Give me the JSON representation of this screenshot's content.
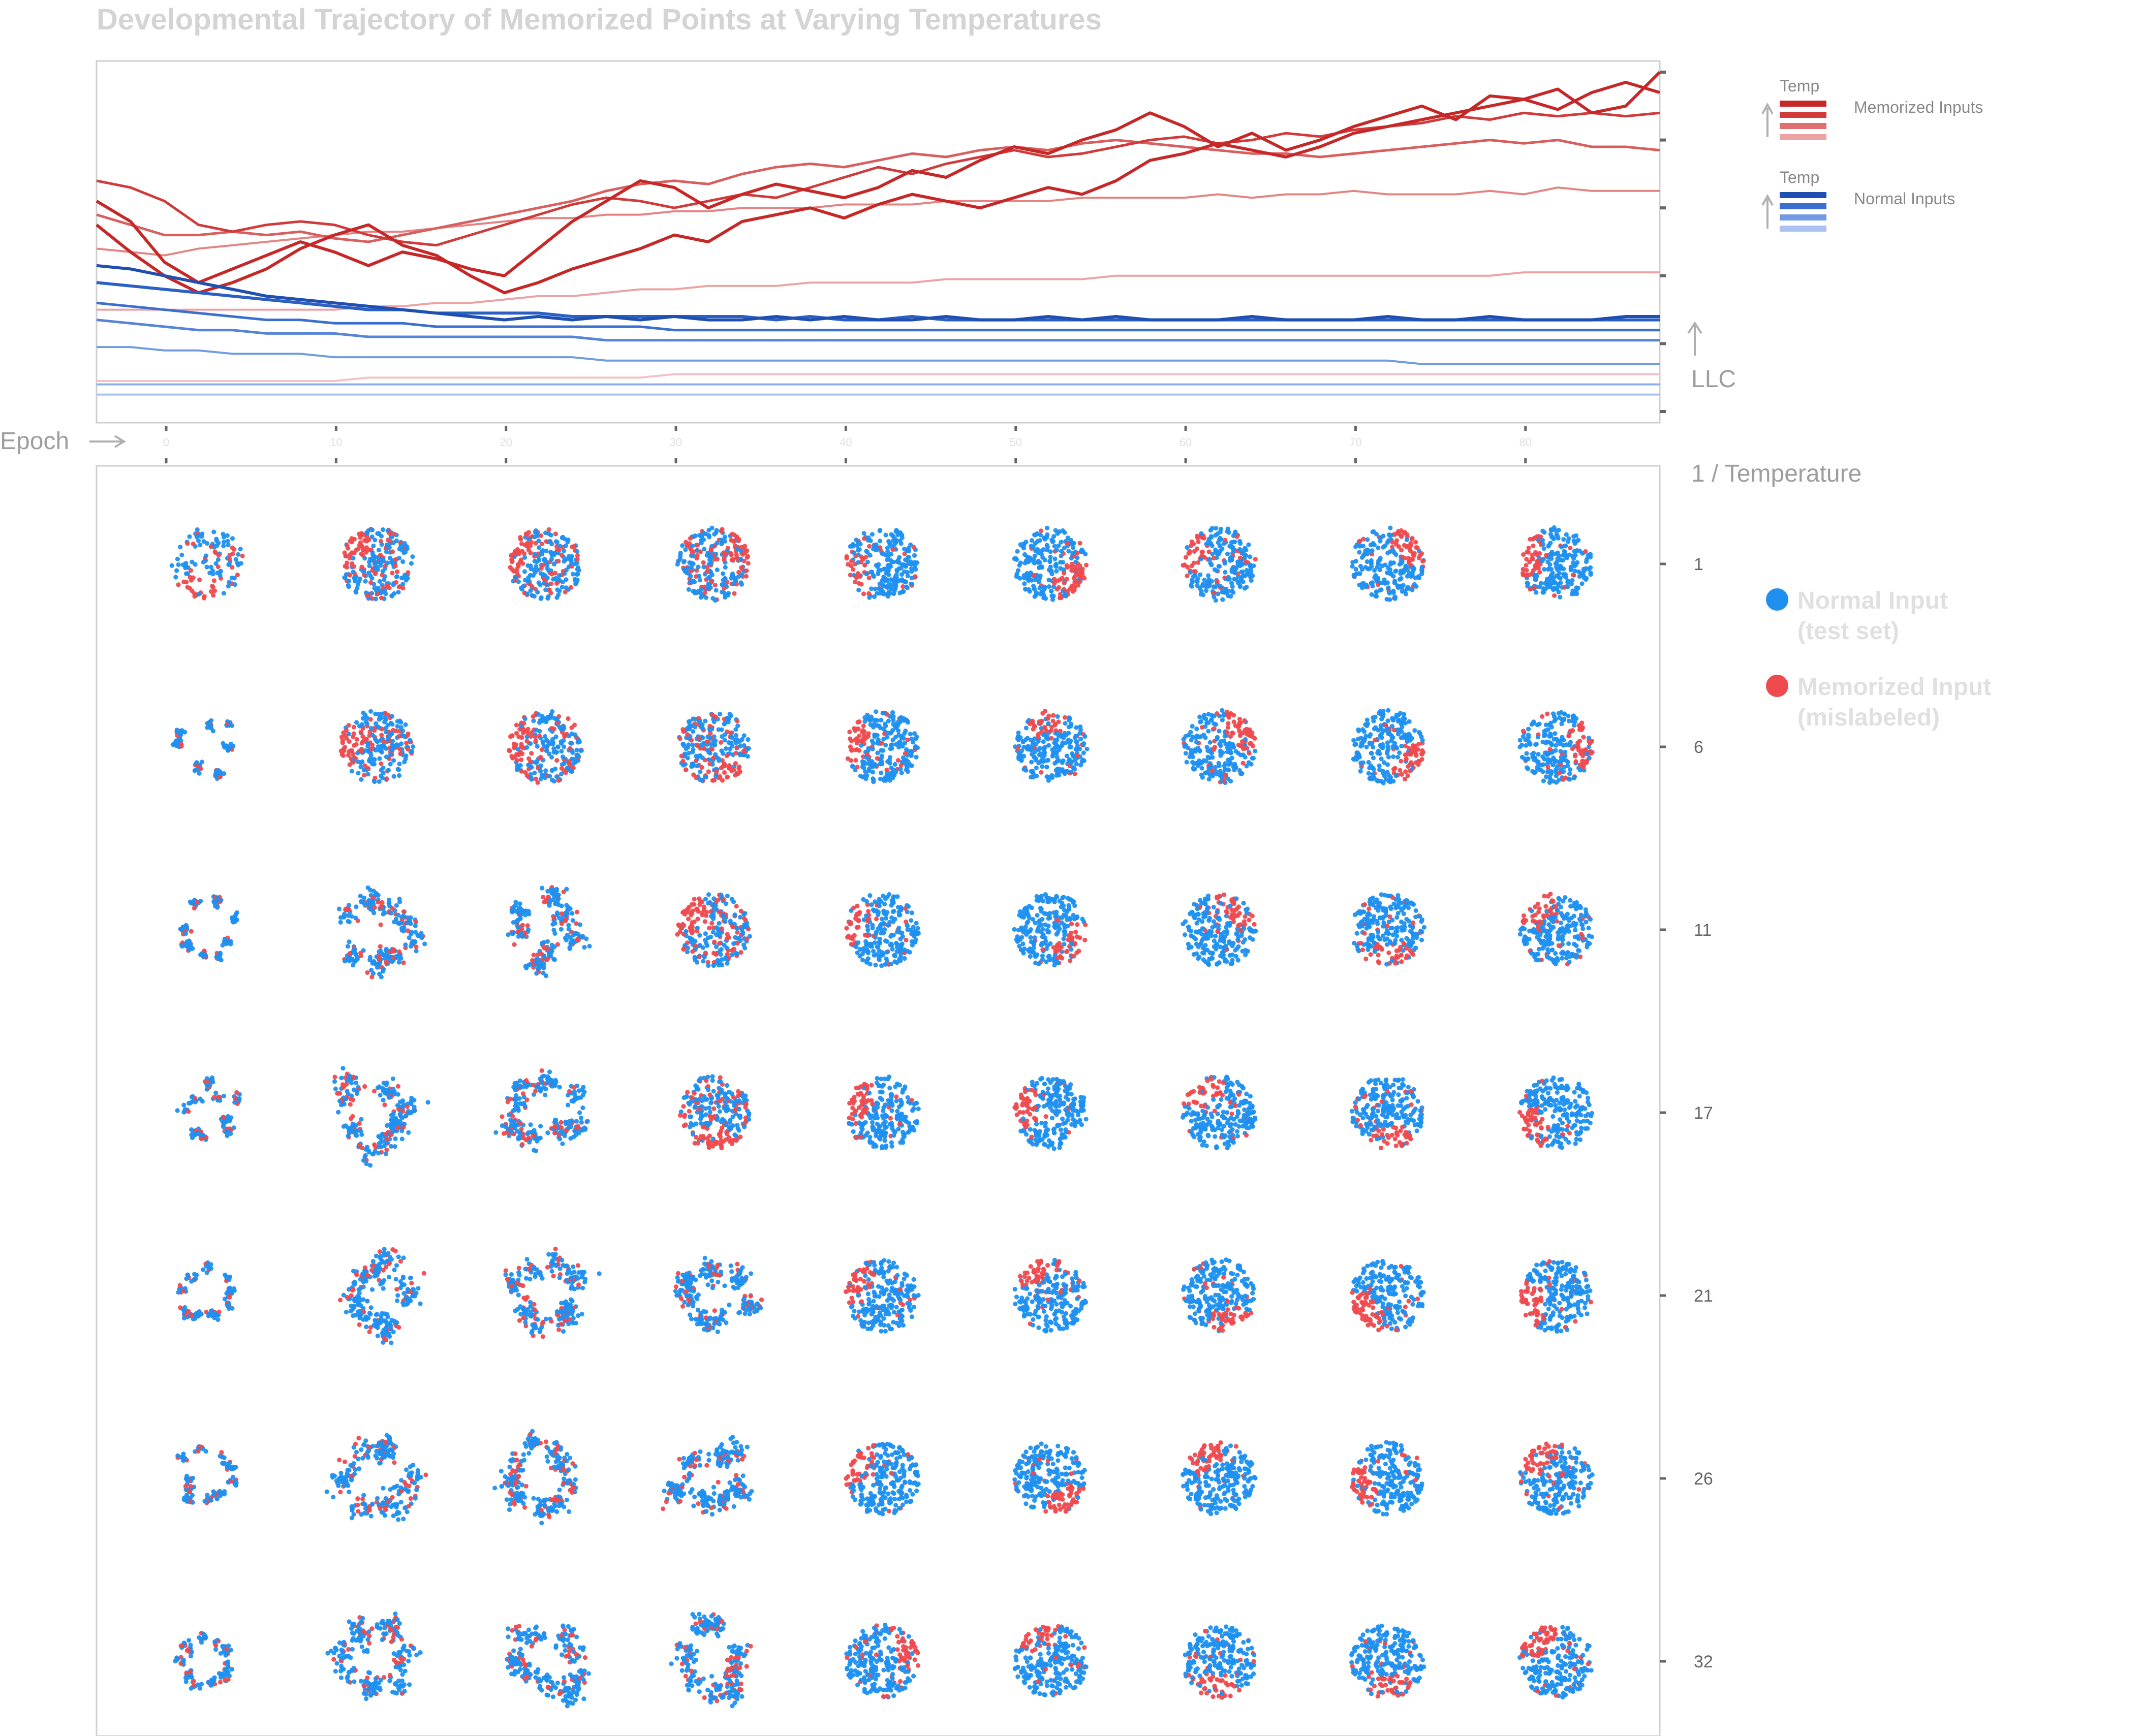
{
  "title": "Developmental Trajectory of Memorized Points at Varying Temperatures",
  "colors": {
    "title": "#d4d4d4",
    "axis_label": "#9e9e9e",
    "tick": "#666666",
    "frame": "#cfcfcf",
    "normal_point": "#1e90f0",
    "memorized_point": "#ef4a4e",
    "legend_text": "#e0e0e0"
  },
  "chart_data": [
    {
      "type": "line",
      "x": [
        0,
        2,
        4,
        6,
        8,
        10,
        12,
        14,
        16,
        18,
        20,
        22,
        24,
        26,
        28,
        30,
        32,
        34,
        36,
        38,
        40,
        42,
        44,
        46,
        48,
        50,
        52,
        54,
        56,
        58,
        60,
        62,
        64,
        66,
        68,
        70,
        72,
        74,
        76,
        78,
        80,
        82,
        84,
        86,
        88,
        90,
        92
      ],
      "x_ticks": [
        "0",
        "10",
        "20",
        "30",
        "40",
        "50",
        "60",
        "70",
        "80"
      ],
      "xlabel": "Epoch",
      "ylabel": "LLC",
      "xlim": [
        0,
        92
      ],
      "ylim": [
        0,
        1
      ],
      "grid": false,
      "series": [
        {
          "group": "memorized",
          "temp_rank": 1,
          "color": "#c62828",
          "values": [
            0.62,
            0.56,
            0.44,
            0.38,
            0.42,
            0.46,
            0.5,
            0.47,
            0.43,
            0.47,
            0.45,
            0.42,
            0.4,
            0.48,
            0.56,
            0.62,
            0.68,
            0.66,
            0.6,
            0.64,
            0.67,
            0.65,
            0.63,
            0.66,
            0.71,
            0.69,
            0.74,
            0.78,
            0.76,
            0.8,
            0.83,
            0.88,
            0.84,
            0.78,
            0.82,
            0.77,
            0.8,
            0.84,
            0.87,
            0.9,
            0.86,
            0.93,
            0.92,
            0.89,
            0.94,
            0.97,
            0.94
          ]
        },
        {
          "group": "memorized",
          "temp_rank": 2,
          "color": "#c62828",
          "values": [
            0.55,
            0.47,
            0.4,
            0.35,
            0.38,
            0.42,
            0.48,
            0.52,
            0.55,
            0.49,
            0.46,
            0.4,
            0.35,
            0.38,
            0.42,
            0.45,
            0.48,
            0.52,
            0.5,
            0.56,
            0.58,
            0.6,
            0.57,
            0.61,
            0.64,
            0.62,
            0.6,
            0.63,
            0.66,
            0.64,
            0.68,
            0.74,
            0.76,
            0.79,
            0.77,
            0.75,
            0.78,
            0.82,
            0.84,
            0.86,
            0.88,
            0.9,
            0.92,
            0.95,
            0.88,
            0.9,
            1.0
          ]
        },
        {
          "group": "memorized",
          "temp_rank": 3,
          "color": "#d13a3a",
          "values": [
            0.68,
            0.66,
            0.62,
            0.55,
            0.53,
            0.55,
            0.56,
            0.55,
            0.52,
            0.5,
            0.49,
            0.52,
            0.55,
            0.58,
            0.61,
            0.63,
            0.62,
            0.6,
            0.62,
            0.64,
            0.63,
            0.66,
            0.69,
            0.72,
            0.7,
            0.73,
            0.75,
            0.77,
            0.75,
            0.76,
            0.78,
            0.8,
            0.81,
            0.79,
            0.8,
            0.82,
            0.81,
            0.83,
            0.84,
            0.85,
            0.87,
            0.86,
            0.88,
            0.87,
            0.88,
            0.87,
            0.88
          ]
        },
        {
          "group": "memorized",
          "temp_rank": 4,
          "color": "#db5e5e",
          "values": [
            0.58,
            0.55,
            0.52,
            0.52,
            0.53,
            0.52,
            0.53,
            0.51,
            0.5,
            0.52,
            0.54,
            0.56,
            0.58,
            0.6,
            0.62,
            0.65,
            0.67,
            0.68,
            0.67,
            0.7,
            0.72,
            0.73,
            0.72,
            0.74,
            0.76,
            0.75,
            0.77,
            0.78,
            0.77,
            0.79,
            0.8,
            0.79,
            0.78,
            0.77,
            0.76,
            0.76,
            0.75,
            0.76,
            0.77,
            0.78,
            0.79,
            0.8,
            0.79,
            0.8,
            0.78,
            0.78,
            0.77
          ]
        },
        {
          "group": "memorized",
          "temp_rank": 5,
          "color": "#e58383",
          "values": [
            0.48,
            0.47,
            0.46,
            0.48,
            0.49,
            0.5,
            0.51,
            0.52,
            0.53,
            0.53,
            0.54,
            0.55,
            0.56,
            0.57,
            0.57,
            0.58,
            0.58,
            0.59,
            0.59,
            0.6,
            0.6,
            0.6,
            0.61,
            0.61,
            0.61,
            0.62,
            0.62,
            0.62,
            0.62,
            0.63,
            0.63,
            0.63,
            0.63,
            0.64,
            0.63,
            0.64,
            0.64,
            0.65,
            0.64,
            0.64,
            0.64,
            0.65,
            0.64,
            0.66,
            0.65,
            0.65,
            0.65
          ]
        },
        {
          "group": "memorized",
          "temp_rank": 6,
          "color": "#eda3a3",
          "values": [
            0.3,
            0.3,
            0.3,
            0.3,
            0.3,
            0.3,
            0.3,
            0.3,
            0.31,
            0.31,
            0.32,
            0.32,
            0.33,
            0.34,
            0.34,
            0.35,
            0.36,
            0.36,
            0.37,
            0.37,
            0.37,
            0.38,
            0.38,
            0.38,
            0.38,
            0.39,
            0.39,
            0.39,
            0.39,
            0.39,
            0.4,
            0.4,
            0.4,
            0.4,
            0.4,
            0.4,
            0.4,
            0.4,
            0.4,
            0.4,
            0.4,
            0.4,
            0.41,
            0.41,
            0.41,
            0.41,
            0.41
          ]
        },
        {
          "group": "memorized",
          "temp_rank": 7,
          "color": "#f3c2c2",
          "values": [
            0.09,
            0.09,
            0.09,
            0.09,
            0.09,
            0.09,
            0.09,
            0.09,
            0.1,
            0.1,
            0.1,
            0.1,
            0.1,
            0.1,
            0.1,
            0.1,
            0.1,
            0.11,
            0.11,
            0.11,
            0.11,
            0.11,
            0.11,
            0.11,
            0.11,
            0.11,
            0.11,
            0.11,
            0.11,
            0.11,
            0.11,
            0.11,
            0.11,
            0.11,
            0.11,
            0.11,
            0.11,
            0.11,
            0.11,
            0.11,
            0.11,
            0.11,
            0.11,
            0.11,
            0.11,
            0.11,
            0.11
          ]
        },
        {
          "group": "normal",
          "temp_rank": 1,
          "color": "#1f4fb0",
          "values": [
            0.43,
            0.42,
            0.4,
            0.38,
            0.36,
            0.34,
            0.33,
            0.32,
            0.31,
            0.3,
            0.29,
            0.28,
            0.27,
            0.28,
            0.27,
            0.28,
            0.27,
            0.28,
            0.27,
            0.27,
            0.28,
            0.27,
            0.28,
            0.27,
            0.27,
            0.28,
            0.27,
            0.27,
            0.28,
            0.27,
            0.28,
            0.27,
            0.27,
            0.27,
            0.28,
            0.27,
            0.27,
            0.27,
            0.28,
            0.27,
            0.27,
            0.28,
            0.27,
            0.27,
            0.27,
            0.28,
            0.28
          ]
        },
        {
          "group": "normal",
          "temp_rank": 2,
          "color": "#2a5fc4",
          "values": [
            0.38,
            0.37,
            0.36,
            0.35,
            0.34,
            0.33,
            0.32,
            0.31,
            0.3,
            0.3,
            0.29,
            0.29,
            0.29,
            0.29,
            0.28,
            0.28,
            0.28,
            0.28,
            0.28,
            0.28,
            0.27,
            0.28,
            0.27,
            0.27,
            0.28,
            0.27,
            0.27,
            0.27,
            0.27,
            0.27,
            0.27,
            0.27,
            0.27,
            0.27,
            0.27,
            0.27,
            0.27,
            0.27,
            0.27,
            0.27,
            0.27,
            0.27,
            0.27,
            0.27,
            0.27,
            0.27,
            0.27
          ]
        },
        {
          "group": "normal",
          "temp_rank": 3,
          "color": "#3a6fd0",
          "values": [
            0.32,
            0.31,
            0.3,
            0.29,
            0.28,
            0.27,
            0.27,
            0.26,
            0.26,
            0.26,
            0.25,
            0.25,
            0.25,
            0.25,
            0.25,
            0.25,
            0.25,
            0.24,
            0.24,
            0.24,
            0.24,
            0.24,
            0.24,
            0.24,
            0.24,
            0.24,
            0.24,
            0.24,
            0.24,
            0.24,
            0.24,
            0.24,
            0.24,
            0.24,
            0.24,
            0.24,
            0.24,
            0.24,
            0.24,
            0.24,
            0.24,
            0.24,
            0.24,
            0.24,
            0.24,
            0.24,
            0.24
          ]
        },
        {
          "group": "normal",
          "temp_rank": 4,
          "color": "#5584da",
          "values": [
            0.27,
            0.26,
            0.25,
            0.24,
            0.24,
            0.23,
            0.23,
            0.23,
            0.22,
            0.22,
            0.22,
            0.22,
            0.22,
            0.22,
            0.22,
            0.21,
            0.21,
            0.21,
            0.21,
            0.21,
            0.21,
            0.21,
            0.21,
            0.21,
            0.21,
            0.21,
            0.21,
            0.21,
            0.21,
            0.21,
            0.21,
            0.21,
            0.21,
            0.21,
            0.21,
            0.21,
            0.21,
            0.21,
            0.21,
            0.21,
            0.21,
            0.21,
            0.21,
            0.21,
            0.21,
            0.21,
            0.21
          ]
        },
        {
          "group": "normal",
          "temp_rank": 5,
          "color": "#709ae2",
          "values": [
            0.19,
            0.19,
            0.18,
            0.18,
            0.17,
            0.17,
            0.17,
            0.16,
            0.16,
            0.16,
            0.16,
            0.16,
            0.16,
            0.16,
            0.16,
            0.15,
            0.15,
            0.15,
            0.15,
            0.15,
            0.15,
            0.15,
            0.15,
            0.15,
            0.15,
            0.15,
            0.15,
            0.15,
            0.15,
            0.15,
            0.15,
            0.15,
            0.15,
            0.15,
            0.15,
            0.15,
            0.15,
            0.15,
            0.15,
            0.14,
            0.14,
            0.14,
            0.14,
            0.14,
            0.14,
            0.14,
            0.14
          ]
        },
        {
          "group": "normal",
          "temp_rank": 6,
          "color": "#8daeea",
          "values": [
            0.08,
            0.08,
            0.08,
            0.08,
            0.08,
            0.08,
            0.08,
            0.08,
            0.08,
            0.08,
            0.08,
            0.08,
            0.08,
            0.08,
            0.08,
            0.08,
            0.08,
            0.08,
            0.08,
            0.08,
            0.08,
            0.08,
            0.08,
            0.08,
            0.08,
            0.08,
            0.08,
            0.08,
            0.08,
            0.08,
            0.08,
            0.08,
            0.08,
            0.08,
            0.08,
            0.08,
            0.08,
            0.08,
            0.08,
            0.08,
            0.08,
            0.08,
            0.08,
            0.08,
            0.08,
            0.08,
            0.08
          ]
        },
        {
          "group": "normal",
          "temp_rank": 7,
          "color": "#a9c2f0",
          "values": [
            0.05,
            0.05,
            0.05,
            0.05,
            0.05,
            0.05,
            0.05,
            0.05,
            0.05,
            0.05,
            0.05,
            0.05,
            0.05,
            0.05,
            0.05,
            0.05,
            0.05,
            0.05,
            0.05,
            0.05,
            0.05,
            0.05,
            0.05,
            0.05,
            0.05,
            0.05,
            0.05,
            0.05,
            0.05,
            0.05,
            0.05,
            0.05,
            0.05,
            0.05,
            0.05,
            0.05,
            0.05,
            0.05,
            0.05,
            0.05,
            0.05,
            0.05,
            0.05,
            0.05,
            0.05,
            0.05,
            0.05
          ]
        }
      ],
      "legend": {
        "placement": "right",
        "groups": [
          {
            "heading": "Temp",
            "label": "Memorized Inputs",
            "swatches": [
              "#c62828",
              "#d13a3a",
              "#e07070",
              "#eda3a3"
            ]
          },
          {
            "heading": "Temp",
            "label": "Normal Inputs",
            "swatches": [
              "#1f4fb0",
              "#3a6fd0",
              "#709ae2",
              "#a9c2f0"
            ]
          }
        ]
      }
    },
    {
      "type": "scatter",
      "ylabel": "1 / Temperature",
      "row_labels": [
        "1",
        "6",
        "11",
        "17",
        "21",
        "26",
        "32"
      ],
      "columns": 9,
      "legend": {
        "placement": "right",
        "entries": [
          {
            "label_line1": "Normal Input",
            "label_line2": "(test set)",
            "color": "#1e90f0"
          },
          {
            "label_line1": "Memorized Input",
            "label_line2": "(mislabeled)",
            "color": "#ef4a4e"
          }
        ]
      }
    }
  ]
}
